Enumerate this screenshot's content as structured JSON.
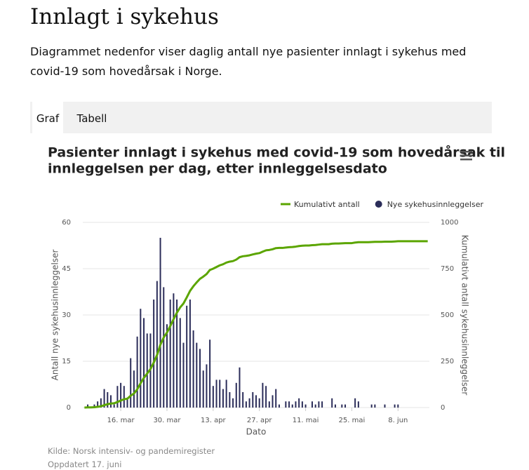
{
  "header": {
    "title": "Innlagt i sykehus",
    "description": "Diagrammet nedenfor viser daglig antall nye pasienter innlagt i sykehus med covid-19 som hovedårsak i Norge."
  },
  "tabs": [
    "Graf",
    "Tabell"
  ],
  "chart_data": {
    "type": "combo",
    "title": "Pasienter innlagt i sykehus med covid-19 som hovedårsak til innleggelsen per dag, etter innleggelsesdato",
    "xlabel": "Dato",
    "ylabel": "Antall nye sykehusinnleggelser",
    "y2label": "Kumulativt antall sykehusinnleggelser",
    "categories": [
      null,
      null,
      null,
      null,
      null,
      null,
      null,
      null,
      null,
      null,
      null,
      "16. mar",
      null,
      null,
      null,
      null,
      null,
      null,
      null,
      null,
      null,
      null,
      null,
      null,
      null,
      "30. mar",
      null,
      null,
      null,
      null,
      null,
      null,
      null,
      null,
      null,
      null,
      null,
      null,
      null,
      "13. apr",
      null,
      null,
      null,
      null,
      null,
      null,
      null,
      null,
      null,
      null,
      null,
      null,
      null,
      "27. apr",
      null,
      null,
      null,
      null,
      null,
      null,
      null,
      null,
      null,
      null,
      null,
      null,
      null,
      "11. mai",
      null,
      null,
      null,
      null,
      null,
      null,
      null,
      null,
      null,
      null,
      null,
      null,
      null,
      "25. mai",
      null,
      null,
      null,
      null,
      null,
      null,
      null,
      null,
      null,
      null,
      null,
      null,
      null,
      "8. jun",
      null,
      null,
      null,
      null,
      null,
      null,
      null,
      null,
      null
    ],
    "series": [
      {
        "name": "Kumulativt antall",
        "type": "line",
        "axis": "y2",
        "color": "#5ba500",
        "values": [
          0,
          1,
          1,
          2,
          4,
          7,
          13,
          18,
          22,
          23,
          30,
          38,
          45,
          48,
          64,
          76,
          99,
          131,
          160,
          184,
          208,
          243,
          284,
          339,
          378,
          405,
          440,
          477,
          512,
          541,
          562,
          595,
          630,
          655,
          676,
          695,
          707,
          721,
          743,
          750,
          759,
          768,
          774,
          783,
          788,
          791,
          799,
          812,
          817,
          819,
          822,
          827,
          831,
          834,
          842,
          849,
          851,
          855,
          861,
          862,
          862,
          864,
          866,
          867,
          869,
          872,
          874,
          875,
          875,
          877,
          878,
          880,
          882,
          882,
          882,
          885,
          886,
          886,
          887,
          888,
          888,
          888,
          891,
          893,
          893,
          893,
          893,
          894,
          895,
          895,
          895,
          896,
          896,
          896,
          897,
          898,
          898,
          898,
          898,
          898,
          898,
          898,
          898,
          898,
          898
        ]
      },
      {
        "name": "Nye sykehusinnleggelser",
        "type": "bar",
        "color": "#2b2d59",
        "values": [
          0,
          1,
          0,
          1,
          2,
          3,
          6,
          5,
          4,
          1,
          7,
          8,
          7,
          3,
          16,
          12,
          23,
          32,
          29,
          24,
          24,
          35,
          41,
          55,
          39,
          27,
          35,
          37,
          35,
          29,
          21,
          33,
          35,
          25,
          21,
          19,
          12,
          14,
          22,
          7,
          9,
          9,
          6,
          9,
          5,
          3,
          8,
          13,
          5,
          2,
          3,
          5,
          4,
          3,
          8,
          7,
          2,
          4,
          6,
          1,
          0,
          2,
          2,
          1,
          2,
          3,
          2,
          1,
          0,
          2,
          1,
          2,
          2,
          0,
          0,
          3,
          1,
          0,
          1,
          1,
          0,
          0,
          3,
          2,
          0,
          0,
          0,
          1,
          1,
          0,
          0,
          1,
          0,
          0,
          1,
          1,
          0,
          0,
          0,
          0,
          0,
          0,
          0,
          0,
          0
        ]
      }
    ],
    "ylim": [
      0,
      60
    ],
    "yticks": [
      0,
      15,
      30,
      45,
      60
    ],
    "y2lim": [
      0,
      1000
    ],
    "y2ticks": [
      0,
      250,
      500,
      750,
      1000
    ],
    "grid": true,
    "legend": "top-right"
  },
  "source": "Kilde: Norsk intensiv- og pandemiregister",
  "updated": "Oppdatert 17. juni"
}
